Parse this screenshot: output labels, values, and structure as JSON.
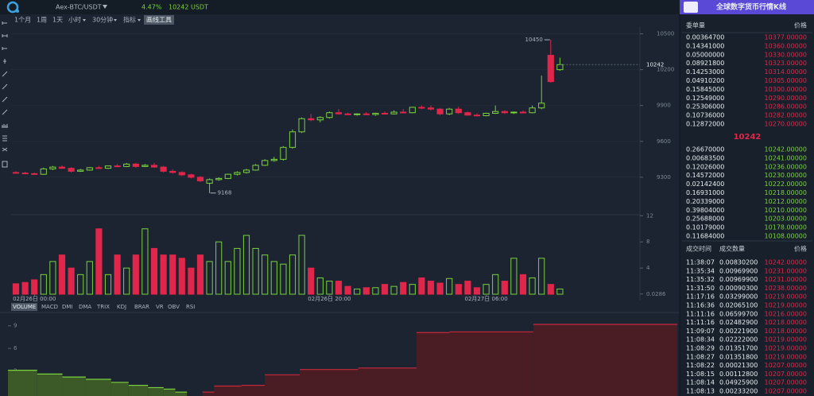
{
  "header": {
    "pair": "Aex-BTC/USDT",
    "change": "4.47%",
    "price": "10242 USDT"
  },
  "toolbar": {
    "periods": [
      "1个月",
      "1周",
      "1天"
    ],
    "menus": [
      "小时",
      "30分钟",
      "指标"
    ],
    "drawing_tools": "画线工具"
  },
  "indicators": [
    "VOLUME",
    "MACD",
    "DMI",
    "DMA",
    "TRIX",
    "KDJ",
    "BRAR",
    "VR",
    "OBV",
    "RSI"
  ],
  "banner": "全球数字货币行情K线",
  "order_book": {
    "amount_header": "委单量",
    "price_header": "价格",
    "asks": [
      [
        "0.00364700",
        "10377.00000"
      ],
      [
        "0.14341000",
        "10360.00000"
      ],
      [
        "0.05000000",
        "10330.00000"
      ],
      [
        "0.08921800",
        "10323.00000"
      ],
      [
        "0.14253000",
        "10314.00000"
      ],
      [
        "0.04910200",
        "10305.00000"
      ],
      [
        "0.15845000",
        "10300.00000"
      ],
      [
        "0.12549000",
        "10290.00000"
      ],
      [
        "0.25306000",
        "10286.00000"
      ],
      [
        "0.10736000",
        "10282.00000"
      ],
      [
        "0.12872000",
        "10270.00000"
      ]
    ],
    "mid": "10242",
    "bids": [
      [
        "0.26670000",
        "10242.00000"
      ],
      [
        "0.00683500",
        "10241.00000"
      ],
      [
        "0.12026000",
        "10236.00000"
      ],
      [
        "0.14572000",
        "10230.00000"
      ],
      [
        "0.02142400",
        "10222.00000"
      ],
      [
        "0.16931000",
        "10218.00000"
      ],
      [
        "0.20339000",
        "10212.00000"
      ],
      [
        "0.39804000",
        "10210.00000"
      ],
      [
        "0.25688000",
        "10203.00000"
      ],
      [
        "0.10179000",
        "10178.00000"
      ],
      [
        "0.11684000",
        "10108.00000"
      ]
    ]
  },
  "trades": {
    "headers": [
      "成交时间",
      "成交数量",
      "价格"
    ],
    "rows": [
      [
        "11:38:07",
        "0.00830200",
        "10242.00000"
      ],
      [
        "11:35:34",
        "0.00969900",
        "10231.00000"
      ],
      [
        "11:35:32",
        "0.00969900",
        "10231.00000"
      ],
      [
        "11:31:50",
        "0.00090300",
        "10238.00000"
      ],
      [
        "11:17:16",
        "0.03299000",
        "10219.00000"
      ],
      [
        "11:16:36",
        "0.02065100",
        "10219.00000"
      ],
      [
        "11:11:16",
        "0.06599700",
        "10216.00000"
      ],
      [
        "11:11:16",
        "0.02482900",
        "10218.00000"
      ],
      [
        "11:09:07",
        "0.00221900",
        "10218.00000"
      ],
      [
        "11:08:34",
        "0.02222000",
        "10219.00000"
      ],
      [
        "11:08:29",
        "0.01351700",
        "10219.00000"
      ],
      [
        "11:08:27",
        "0.01351800",
        "10219.00000"
      ],
      [
        "11:08:22",
        "0.00021300",
        "10207.00000"
      ],
      [
        "11:08:15",
        "0.00112800",
        "10207.00000"
      ],
      [
        "11:08:14",
        "0.04925900",
        "10207.00000"
      ],
      [
        "11:08:13",
        "0.00233200",
        "10207.00000"
      ]
    ]
  },
  "chart_data": [
    {
      "type": "candlestick",
      "up_color": "#7bd13f",
      "down_color": "#e0264a",
      "open": [
        9340,
        9335,
        9330,
        9325,
        9370,
        9385,
        9375,
        9350,
        9360,
        9380,
        9375,
        9395,
        9390,
        9410,
        9390,
        9400,
        9385,
        9350,
        9340,
        9320,
        9300,
        9250,
        9280,
        9290,
        9325,
        9340,
        9360,
        9400,
        9440,
        9450,
        9550,
        9680,
        9790,
        9780,
        9800,
        9840,
        9830,
        9825,
        9830,
        9825,
        9835,
        9830,
        9845,
        9840,
        9885,
        9880,
        9870,
        9830,
        9870,
        9840,
        9820,
        9815,
        9835,
        9850,
        9840,
        9845,
        9840,
        9880,
        10320,
        10200
      ],
      "high": [
        9350,
        9345,
        9340,
        9380,
        9395,
        9400,
        9385,
        9370,
        9385,
        9395,
        9400,
        9410,
        9420,
        9420,
        9410,
        9420,
        9395,
        9365,
        9350,
        9330,
        9310,
        9290,
        9300,
        9330,
        9350,
        9370,
        9410,
        9450,
        9470,
        9560,
        9700,
        9800,
        9830,
        9810,
        9850,
        9870,
        9840,
        9835,
        9845,
        9840,
        9850,
        9860,
        9870,
        9890,
        9900,
        9900,
        9880,
        9880,
        9890,
        9850,
        9835,
        9840,
        9900,
        9860,
        9850,
        9860,
        9900,
        10150,
        10450,
        10300
      ],
      "low": [
        9330,
        9325,
        9320,
        9320,
        9360,
        9370,
        9340,
        9345,
        9355,
        9370,
        9370,
        9385,
        9385,
        9380,
        9385,
        9380,
        9340,
        9330,
        9310,
        9290,
        9260,
        9168,
        9270,
        9285,
        9315,
        9330,
        9355,
        9395,
        9430,
        9440,
        9540,
        9670,
        9770,
        9760,
        9790,
        9825,
        9820,
        9815,
        9820,
        9815,
        9825,
        9825,
        9835,
        9835,
        9870,
        9860,
        9820,
        9820,
        9830,
        9815,
        9810,
        9810,
        9830,
        9830,
        9830,
        9835,
        9835,
        9870,
        10090,
        10190
      ],
      "close": [
        9335,
        9330,
        9325,
        9370,
        9385,
        9375,
        9350,
        9360,
        9380,
        9375,
        9395,
        9390,
        9410,
        9390,
        9400,
        9385,
        9350,
        9340,
        9320,
        9300,
        9270,
        9280,
        9290,
        9325,
        9340,
        9360,
        9400,
        9440,
        9450,
        9550,
        9680,
        9790,
        9780,
        9800,
        9840,
        9830,
        9825,
        9830,
        9825,
        9835,
        9830,
        9845,
        9840,
        9885,
        9880,
        9870,
        9830,
        9870,
        9840,
        9820,
        9815,
        9835,
        9850,
        9840,
        9845,
        9840,
        9880,
        9920,
        10100,
        10242
      ],
      "last": 10242,
      "ylim": [
        9000,
        10550
      ],
      "yticks": [
        10500,
        10200,
        9900,
        9600,
        9300
      ]
    },
    {
      "type": "bar",
      "values": [
        1.6,
        1.8,
        2.2,
        3,
        5,
        6,
        4,
        3,
        5,
        10,
        3,
        6,
        4,
        6,
        10,
        7,
        6,
        6,
        5.5,
        4,
        6,
        5,
        8,
        5,
        7,
        9,
        7,
        6,
        5,
        4.6,
        6,
        9,
        4,
        2.5,
        2,
        2,
        1.2,
        0.8,
        1,
        1,
        1.5,
        1.2,
        1.8,
        1.5,
        2.5,
        2,
        1.7,
        2.4,
        1.5,
        2,
        1,
        1.5,
        3,
        2,
        5.5,
        3,
        2.5,
        5.5,
        1.5,
        0.8
      ],
      "ylim": [
        0,
        12.4
      ],
      "yticks": [
        12,
        8,
        4,
        0.0286
      ],
      "xticks": [
        {
          "value": 2,
          "label": "02月26日 00:00"
        },
        {
          "value": 34,
          "label": "02月26日 20:00"
        },
        {
          "value": 51,
          "label": "02月27日 06:00"
        }
      ]
    },
    {
      "type": "depth",
      "bids": {
        "color": "#7bd13f",
        "price": [
          10242,
          10236,
          10230,
          10222,
          10212,
          10203,
          10190,
          10178,
          10165,
          10150
        ],
        "amount": [
          0.2,
          0.6,
          0.8,
          1.1,
          1.5,
          1.9,
          2.2,
          2.6,
          3.1,
          3.6
        ]
      },
      "asks": {
        "color": "#c8283c",
        "price": [
          10250,
          10256,
          10270,
          10282,
          10300,
          10330,
          10360,
          10377,
          10420,
          10494
        ],
        "amount": [
          0.2,
          1.0,
          1.1,
          2.5,
          3.2,
          3.4,
          8.1,
          8.2,
          9.2,
          9.3
        ]
      },
      "xlim": [
        10150,
        10494
      ],
      "ylim": [
        0,
        9.5
      ],
      "yticks": [
        9,
        6,
        3
      ]
    }
  ]
}
